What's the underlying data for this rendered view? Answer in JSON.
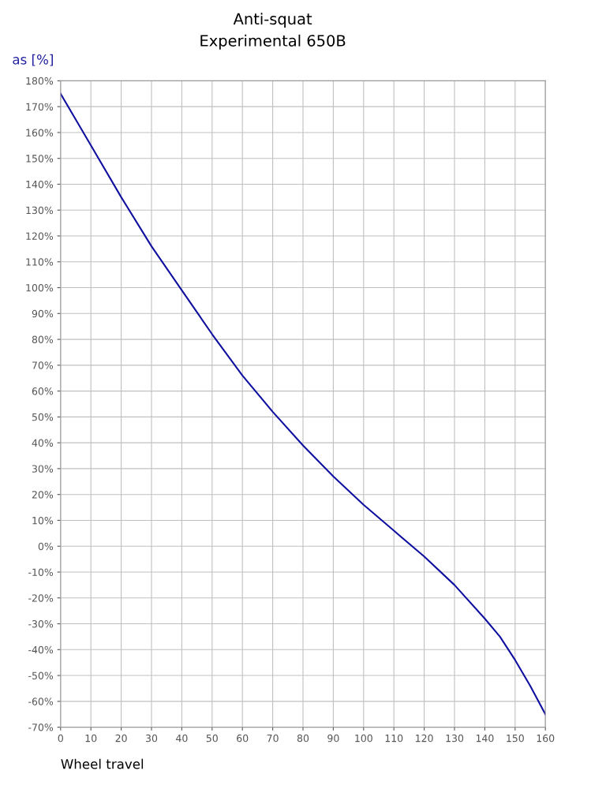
{
  "chart_data": {
    "type": "line",
    "title": "Anti-squat",
    "subtitle": "Experimental 650B",
    "xlabel": "Wheel travel",
    "ylabel": "as [%]",
    "x": [
      0,
      5,
      10,
      20,
      30,
      40,
      50,
      60,
      70,
      80,
      90,
      100,
      110,
      120,
      130,
      140,
      145,
      150,
      155,
      160
    ],
    "series": [
      {
        "color": "#1010a0",
        "values": [
          175,
          165,
          155,
          135,
          116,
          99,
          82,
          66,
          52,
          39,
          27,
          16,
          6,
          -4,
          -15,
          -28,
          -35,
          -44,
          -54,
          -65
        ]
      }
    ],
    "xlim": [
      0,
      160
    ],
    "xticks": [
      0,
      10,
      20,
      30,
      40,
      50,
      60,
      70,
      80,
      90,
      100,
      110,
      120,
      130,
      140,
      150,
      160
    ],
    "ylim": [
      -70,
      180
    ],
    "yticks": [
      {
        "value": -70,
        "label": "-70%"
      },
      {
        "value": -60,
        "label": "-60%"
      },
      {
        "value": -50,
        "label": "-50%"
      },
      {
        "value": -40,
        "label": "-40%"
      },
      {
        "value": -30,
        "label": "-30%"
      },
      {
        "value": -20,
        "label": "-20%"
      },
      {
        "value": -10,
        "label": "-10%"
      },
      {
        "value": 0,
        "label": "0%"
      },
      {
        "value": 10,
        "label": "10%"
      },
      {
        "value": 20,
        "label": "20%"
      },
      {
        "value": 30,
        "label": "30%"
      },
      {
        "value": 40,
        "label": "40%"
      },
      {
        "value": 50,
        "label": "50%"
      },
      {
        "value": 60,
        "label": "60%"
      },
      {
        "value": 70,
        "label": "70%"
      },
      {
        "value": 80,
        "label": "80%"
      },
      {
        "value": 90,
        "label": "90%"
      },
      {
        "value": 100,
        "label": "100%"
      },
      {
        "value": 110,
        "label": "110%"
      },
      {
        "value": 120,
        "label": "120%"
      },
      {
        "value": 130,
        "label": "130%"
      },
      {
        "value": 140,
        "label": "140%"
      },
      {
        "value": 150,
        "label": "150%"
      },
      {
        "value": 160,
        "label": "160%"
      },
      {
        "value": 170,
        "label": "170%"
      },
      {
        "value": 180,
        "label": "180%"
      }
    ],
    "grid": true,
    "marker": "none",
    "line_style": "solid",
    "legend": false
  }
}
